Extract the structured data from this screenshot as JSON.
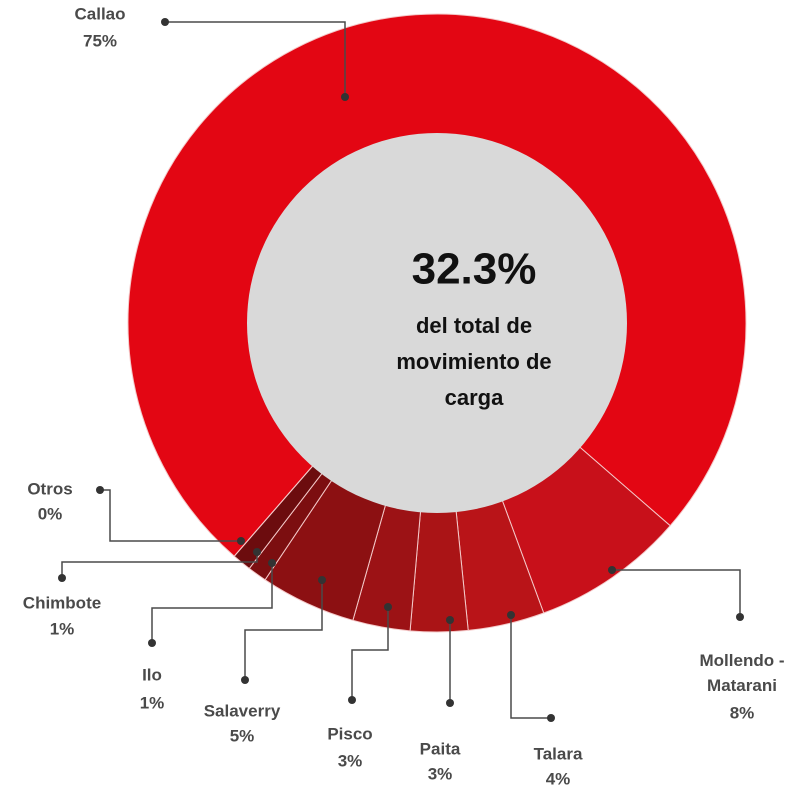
{
  "chart_data": {
    "type": "donut",
    "categories": [
      "Callao",
      "Mollendo - Matarani",
      "Talara",
      "Paita",
      "Pisco",
      "Salaverry",
      "Ilo",
      "Chimbote",
      "Otros"
    ],
    "values": [
      75,
      8,
      4,
      3,
      3,
      5,
      1,
      1,
      0
    ],
    "value_labels": [
      "75%",
      "8%",
      "4%",
      "3%",
      "3%",
      "5%",
      "1%",
      "1%",
      "0%"
    ],
    "colors": [
      "#e30613",
      "#c8101a",
      "#b91418",
      "#aa1416",
      "#9c1215",
      "#8c1012",
      "#7c0e10",
      "#6c0c0e",
      "#5c0a0c"
    ],
    "center_value": "32.3%",
    "center_text": [
      "del total de",
      "movimiento de",
      "carga"
    ]
  }
}
